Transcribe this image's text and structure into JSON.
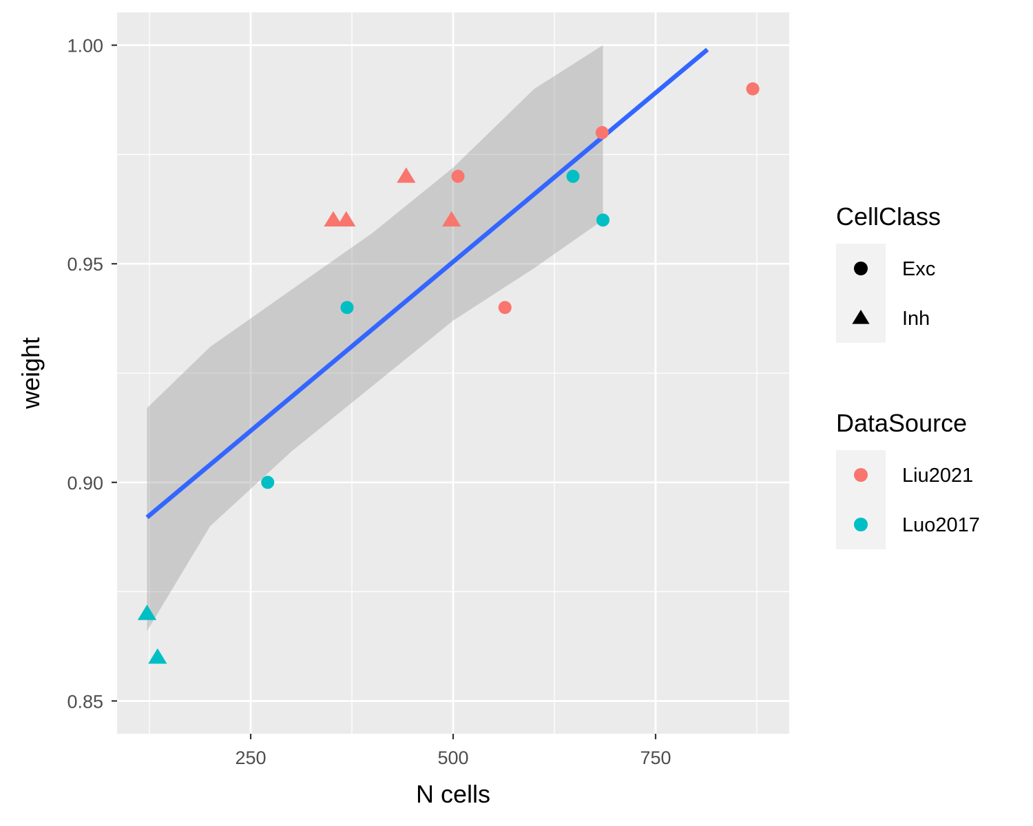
{
  "chart_data": {
    "type": "scatter",
    "xlabel": "N cells",
    "ylabel": "weight",
    "xlim": [
      85,
      915
    ],
    "ylim": [
      0.8425,
      1.0075
    ],
    "x_ticks": [
      250,
      500,
      750
    ],
    "x_tick_labels": [
      "250",
      "500",
      "750"
    ],
    "x_minor_ticks": [
      125,
      375,
      625,
      875
    ],
    "y_ticks": [
      0.85,
      0.9,
      0.95,
      1.0
    ],
    "y_tick_labels": [
      "0.85",
      "0.90",
      "0.95",
      "1.00"
    ],
    "y_minor_ticks": [
      0.875,
      0.925,
      0.975
    ],
    "grid": true,
    "legend_position": "right",
    "series": [
      {
        "name": "Liu2021",
        "color": "#F8766D",
        "points": [
          {
            "x": 352,
            "y": 0.96,
            "class": "Inh"
          },
          {
            "x": 368,
            "y": 0.96,
            "class": "Inh"
          },
          {
            "x": 442,
            "y": 0.97,
            "class": "Inh"
          },
          {
            "x": 498,
            "y": 0.96,
            "class": "Inh"
          },
          {
            "x": 506,
            "y": 0.97,
            "class": "Exc"
          },
          {
            "x": 564,
            "y": 0.94,
            "class": "Exc"
          },
          {
            "x": 684,
            "y": 0.98,
            "class": "Exc"
          },
          {
            "x": 870,
            "y": 0.99,
            "class": "Exc"
          }
        ]
      },
      {
        "name": "Luo2017",
        "color": "#00BFC4",
        "points": [
          {
            "x": 122,
            "y": 0.87,
            "class": "Inh"
          },
          {
            "x": 135,
            "y": 0.86,
            "class": "Inh"
          },
          {
            "x": 271,
            "y": 0.9,
            "class": "Exc"
          },
          {
            "x": 369,
            "y": 0.94,
            "class": "Exc"
          },
          {
            "x": 648,
            "y": 0.97,
            "class": "Exc"
          },
          {
            "x": 685,
            "y": 0.96,
            "class": "Exc"
          }
        ]
      }
    ],
    "fit": {
      "color": "#3366FF",
      "line": [
        [
          122,
          0.892
        ],
        [
          814,
          0.999
        ]
      ],
      "band": [
        [
          122,
          0.866,
          0.917
        ],
        [
          200,
          0.89,
          0.931
        ],
        [
          300,
          0.907,
          0.944
        ],
        [
          400,
          0.922,
          0.957
        ],
        [
          500,
          0.937,
          0.972
        ],
        [
          600,
          0.949,
          0.99
        ],
        [
          685,
          0.96,
          1.0
        ]
      ]
    },
    "legends": [
      {
        "title": "CellClass",
        "items": [
          {
            "label": "Exc",
            "shape": "circle",
            "color": "#000000"
          },
          {
            "label": "Inh",
            "shape": "triangle",
            "color": "#000000"
          }
        ]
      },
      {
        "title": "DataSource",
        "items": [
          {
            "label": "Liu2021",
            "shape": "circle",
            "color": "#F8766D"
          },
          {
            "label": "Luo2017",
            "shape": "circle",
            "color": "#00BFC4"
          }
        ]
      }
    ]
  }
}
